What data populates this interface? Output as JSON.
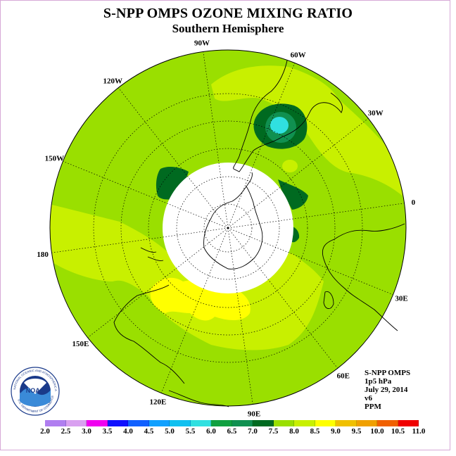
{
  "title": "S-NPP OMPS OZONE MIXING RATIO",
  "subtitle": "Southern Hemisphere",
  "longitude_labels": [
    "90W",
    "60W",
    "30W",
    "0",
    "30E",
    "60E",
    "90E",
    "120E",
    "150E",
    "180",
    "150W",
    "120W"
  ],
  "info": {
    "instrument": "S-NPP OMPS",
    "pressure": "1p5 hPa",
    "date": "July 29, 2014",
    "version": "v6",
    "units": "PPM"
  },
  "colorbar": {
    "ticks": [
      "2.0",
      "2.5",
      "3.0",
      "3.5",
      "4.0",
      "4.5",
      "5.0",
      "5.5",
      "6.0",
      "6.5",
      "7.0",
      "7.5",
      "8.0",
      "8.5",
      "9.0",
      "9.5",
      "10.0",
      "10.5",
      "11.0"
    ],
    "colors": [
      "#b07ef0",
      "#d9a0f0",
      "#f000f0",
      "#1010ff",
      "#1060ff",
      "#10a0ff",
      "#10c0f0",
      "#30e0e0",
      "#10a040",
      "#109050",
      "#006a20",
      "#9adf00",
      "#c8f000",
      "#ffff00",
      "#f0c000",
      "#f0a000",
      "#f06000",
      "#f00000",
      "#8a4a2a"
    ]
  },
  "logo": {
    "text": "NOAA",
    "ring_text": "NATIONAL OCEANIC AND ATMOSPHERIC ADMINISTRATION",
    "ring_text_bottom": "U.S. DEPARTMENT OF COMMERCE"
  }
}
